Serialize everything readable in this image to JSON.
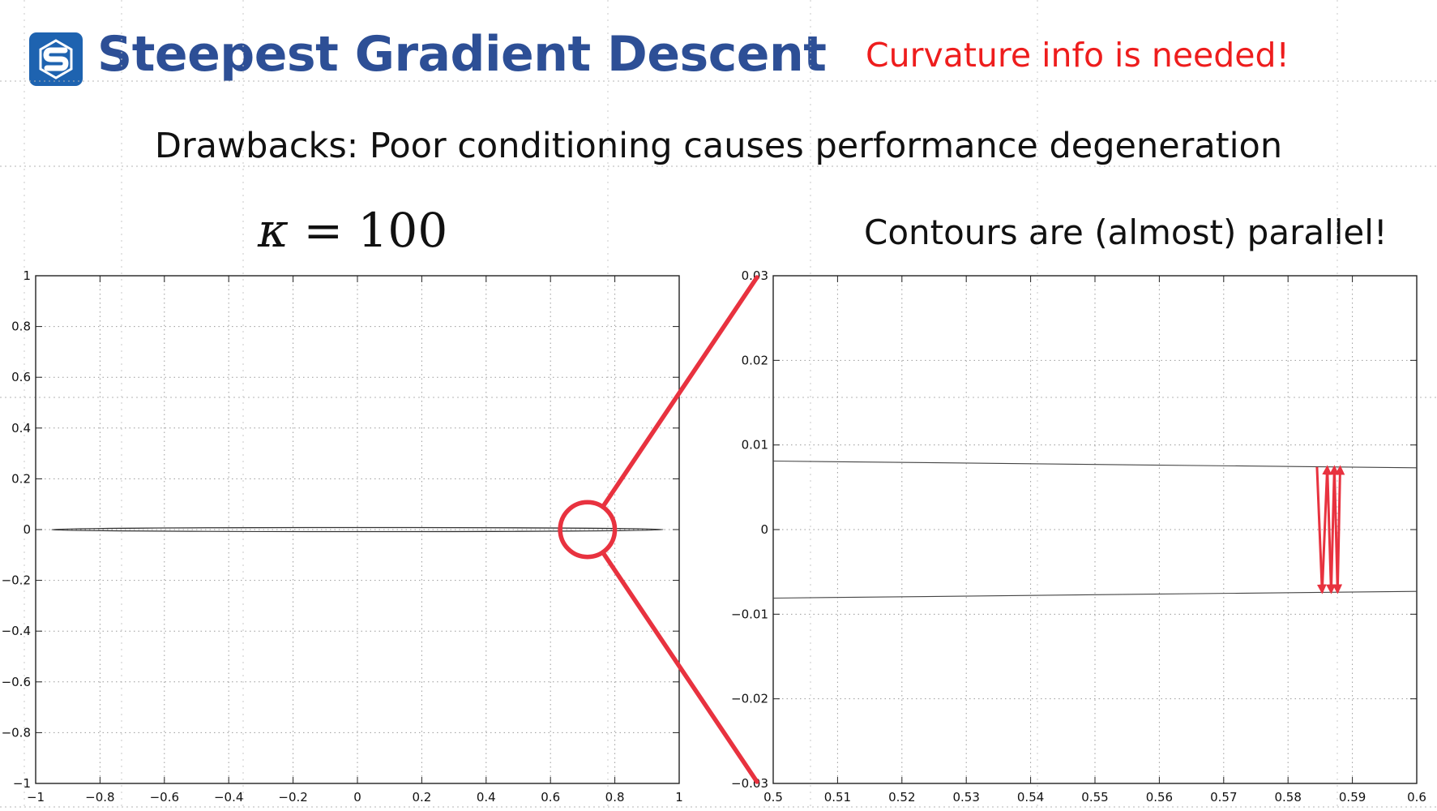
{
  "slide": {
    "logo_icon": "s-cube-logo-icon",
    "title": "Steepest Gradient Descent",
    "note": "Curvature info is needed!",
    "subtitle": "Drawbacks: Poor conditioning causes performance degeneration",
    "kappa_symbol": "κ",
    "kappa_eq": "= 100",
    "contours_note": "Contours are (almost) parallel!",
    "colors": {
      "title": "#2d4f96",
      "logo": "#1e63b0",
      "note": "#ee1d1d",
      "highlight": "#e8323f"
    }
  },
  "chart_data": [
    {
      "type": "line",
      "name": "full-view",
      "xlim": [
        -1,
        1
      ],
      "ylim": [
        -1,
        1
      ],
      "x_ticks": [
        -1,
        -0.8,
        -0.6,
        -0.4,
        -0.2,
        0,
        0.2,
        0.4,
        0.6,
        0.8,
        1
      ],
      "x_tick_labels": [
        "−1",
        "−0.8",
        "−0.6",
        "−0.4",
        "−0.2",
        "0",
        "0.2",
        "0.4",
        "0.6",
        "0.8",
        "1"
      ],
      "y_ticks": [
        -1,
        -0.8,
        -0.6,
        -0.4,
        -0.2,
        0,
        0.2,
        0.4,
        0.6,
        0.8,
        1
      ],
      "y_tick_labels": [
        "−1",
        "−0.8",
        "−0.6",
        "−0.4",
        "−0.2",
        "0",
        "0.2",
        "0.4",
        "0.6",
        "0.8",
        "1"
      ],
      "grid": true,
      "contour_ellipse": {
        "center": [
          0,
          0
        ],
        "semi_x": 0.95,
        "semi_y": 0.008
      },
      "zoom_circle": {
        "center": [
          0.715,
          0
        ],
        "radius_x": 0.085
      }
    },
    {
      "type": "line",
      "name": "zoom-view",
      "xlim": [
        0.5,
        0.6
      ],
      "ylim": [
        -0.03,
        0.03
      ],
      "x_ticks": [
        0.5,
        0.51,
        0.52,
        0.53,
        0.54,
        0.55,
        0.56,
        0.57,
        0.58,
        0.59,
        0.6
      ],
      "x_tick_labels": [
        "0.5",
        "0.51",
        "0.52",
        "0.53",
        "0.54",
        "0.55",
        "0.56",
        "0.57",
        "0.58",
        "0.59",
        "0.6"
      ],
      "y_ticks": [
        -0.03,
        -0.02,
        -0.01,
        0,
        0.01,
        0.02,
        0.03
      ],
      "y_tick_labels": [
        "−0.03",
        "−0.02",
        "−0.01",
        "0",
        "0.01",
        "0.02",
        "0.03"
      ],
      "grid": true,
      "contour_lines": [
        {
          "x": [
            0.5,
            0.6
          ],
          "y": [
            0.0081,
            0.0073
          ]
        },
        {
          "x": [
            0.5,
            0.6
          ],
          "y": [
            -0.0081,
            -0.0073
          ]
        }
      ],
      "zigzag_x": [
        0.5845,
        0.5853,
        0.5861,
        0.5867,
        0.5872,
        0.5877,
        0.5881
      ],
      "zigzag_y_top": 0.0074,
      "zigzag_y_bottom": -0.0074
    }
  ]
}
